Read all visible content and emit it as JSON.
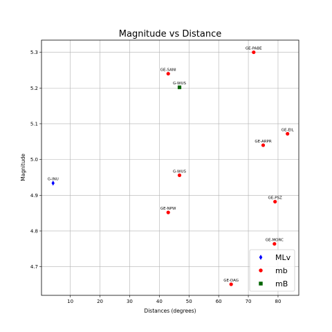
{
  "chart_data": {
    "type": "scatter",
    "title": "Magnitude vs Distance",
    "xlabel": "Distances (degrees)",
    "ylabel": "Magnitude",
    "xlim": [
      0.3,
      87
    ],
    "ylim": [
      4.62,
      5.334
    ],
    "xticks": [
      10,
      20,
      30,
      40,
      50,
      60,
      70,
      80
    ],
    "yticks": [
      4.7,
      4.8,
      4.9,
      5.0,
      5.1,
      5.2,
      5.3
    ],
    "ytick_labels": [
      "4.7",
      "4.8",
      "4.9",
      "5.0",
      "5.1",
      "5.2",
      "5.3"
    ],
    "grid": true,
    "legend_position": "lower-right",
    "series": [
      {
        "name": "MLv",
        "marker": "thin_diamond",
        "color": "#0000ff",
        "points": [
          {
            "label": "G-INU",
            "x": 4.2,
            "y": 4.934
          }
        ]
      },
      {
        "name": "mb",
        "marker": "circle",
        "color": "#ff0000",
        "points": [
          {
            "label": "GE-PABE",
            "x": 71.8,
            "y": 5.3
          },
          {
            "label": "GE-SANI",
            "x": 43.0,
            "y": 5.24
          },
          {
            "label": "GE-EIL",
            "x": 83.2,
            "y": 5.072
          },
          {
            "label": "GE-ARPR",
            "x": 75.0,
            "y": 5.04
          },
          {
            "label": "G-WUS",
            "x": 46.8,
            "y": 4.956
          },
          {
            "label": "GE-PSZ",
            "x": 79.0,
            "y": 4.882
          },
          {
            "label": "GE-NPW",
            "x": 43.0,
            "y": 4.852
          },
          {
            "label": "GE-MORC",
            "x": 78.8,
            "y": 4.764
          },
          {
            "label": "GE-DAG",
            "x": 64.2,
            "y": 4.651
          }
        ]
      },
      {
        "name": "mB",
        "marker": "square",
        "color": "#006400",
        "points": [
          {
            "label": "G-WUS",
            "x": 46.8,
            "y": 5.202
          }
        ]
      }
    ]
  }
}
